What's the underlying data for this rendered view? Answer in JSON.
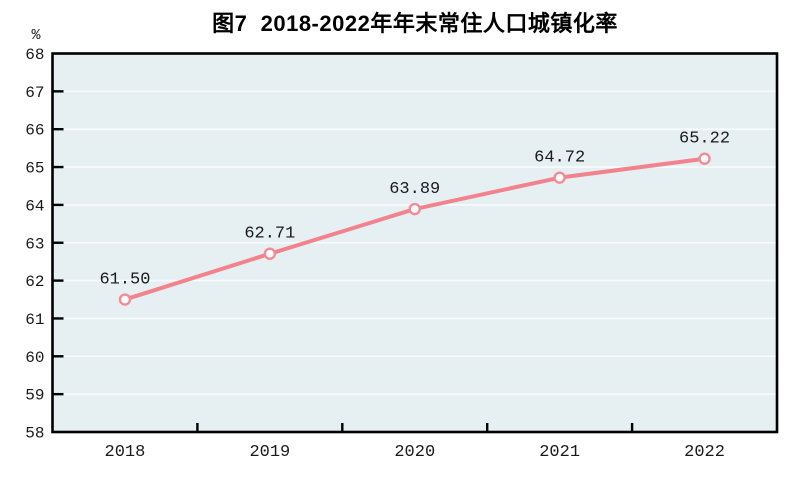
{
  "figure": {
    "y_axis_unit": "%"
  },
  "chart_data": {
    "type": "line",
    "title": "图7  2018-2022年年末常住人口城镇化率",
    "categories": [
      "2018",
      "2019",
      "2020",
      "2021",
      "2022"
    ],
    "values": [
      61.5,
      62.71,
      63.89,
      64.72,
      65.22
    ],
    "point_labels": [
      "61.50",
      "62.71",
      "63.89",
      "64.72",
      "65.22"
    ],
    "xlabel": "",
    "ylabel": "%",
    "ylim": [
      58,
      68
    ],
    "ytick_step": 1,
    "grid": true,
    "legend": false,
    "marker": "open-circle",
    "colors": {
      "line": "#F2838C",
      "marker_ring": "#F18C96",
      "marker_fill": "#FFFFFF",
      "plot_background": "#E6EFF2",
      "gridline": "#F8FBFC",
      "axis": "#000000",
      "text": "#1A1A1A"
    }
  }
}
